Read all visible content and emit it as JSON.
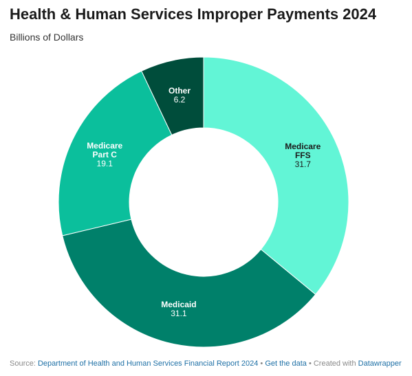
{
  "chart_data": {
    "type": "pie",
    "title": "Health & Human Services Improper Payments 2024",
    "subtitle": "Billions of Dollars",
    "slices": [
      {
        "label": [
          "Medicare",
          "FFS"
        ],
        "value": 31.7,
        "value_label": "31.7",
        "color": "#62f5d6",
        "text_color": "#1a1a1a"
      },
      {
        "label": [
          "Medicaid"
        ],
        "value": 31.1,
        "value_label": "31.1",
        "color": "#00806a",
        "text_color": "#ffffff"
      },
      {
        "label": [
          "Medicare",
          "Part C"
        ],
        "value": 19.1,
        "value_label": "19.1",
        "color": "#0bbf9c",
        "text_color": "#ffffff"
      },
      {
        "label": [
          "Other"
        ],
        "value": 6.2,
        "value_label": "6.2",
        "color": "#004d3b",
        "text_color": "#ffffff"
      }
    ],
    "donut": true
  },
  "footer": {
    "source_prefix": "Source: ",
    "source_link": "Department of Health and Human Services Financial Report 2024",
    "separator1": " • ",
    "get_data": "Get the data",
    "separator2": " • Created with ",
    "created_with": "Datawrapper"
  }
}
